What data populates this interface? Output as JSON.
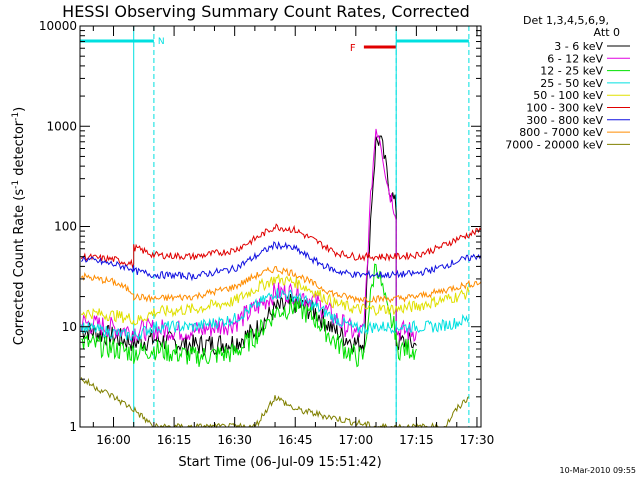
{
  "chart_data": {
    "type": "line",
    "title": "HESSI Observing Summary Count Rates, Corrected",
    "xlabel": "Start Time (06-Jul-09 15:51:42)",
    "ylabel": "Corrected Count Rate (s⁻¹ detector⁻¹)",
    "ylabel_main": "Corrected Count Rate (s",
    "ylabel_sup1": "-1",
    "ylabel_mid": " detector",
    "ylabel_sup2": "-1",
    "ylabel_end": ")",
    "y_scale": "log",
    "ylim": [
      1,
      10000
    ],
    "xlim": [
      "15:51:42",
      "17:31:00"
    ],
    "x_ticks": [
      "16:00",
      "16:15",
      "16:30",
      "16:45",
      "17:00",
      "17:15",
      "17:30"
    ],
    "y_ticks": [
      "1",
      "10",
      "100",
      "1000",
      "10000"
    ],
    "timestamp": "10-Mar-2010 09:55",
    "legend_header": [
      "Det 1,3,4,5,6,9,",
      "Att 0"
    ],
    "legend_placement": "right, outside plot",
    "annotations": [
      {
        "label": "N",
        "type": "night",
        "color": "#00e0e0",
        "intervals": [
          [
            "15:51:42",
            "16:10:00"
          ],
          [
            "17:10:00",
            "17:28:00"
          ]
        ]
      },
      {
        "label": "F",
        "type": "flare",
        "color": "#e00000",
        "intervals": [
          [
            "17:02:00",
            "17:10:00"
          ]
        ]
      }
    ],
    "series": [
      {
        "name": "3 - 6 keV",
        "color": "#000000",
        "x": [
          "15:52",
          "16:05",
          "16:05",
          "16:10",
          "16:20",
          "16:30",
          "16:35",
          "16:40",
          "16:45",
          "16:50",
          "16:55",
          "17:00",
          "17:02",
          "17:03",
          "17:04",
          "17:05",
          "17:06",
          "17:07",
          "17:08",
          "17:10",
          "17:10",
          "17:13",
          "17:15"
        ],
        "y": [
          9.5,
          7,
          7,
          7.5,
          6.5,
          7,
          9,
          15,
          17,
          14,
          9,
          6.8,
          7,
          40,
          200,
          700,
          750,
          500,
          280,
          150,
          7,
          7,
          6.5
        ]
      },
      {
        "name": "6 - 12 keV",
        "color": "#e000e0",
        "x": [
          "15:52",
          "16:05",
          "16:05",
          "16:10",
          "16:20",
          "16:30",
          "16:35",
          "16:40",
          "16:45",
          "16:50",
          "16:55",
          "17:00",
          "17:02",
          "17:03",
          "17:04",
          "17:05",
          "17:06",
          "17:07",
          "17:08",
          "17:10",
          "17:10",
          "17:13",
          "17:15"
        ],
        "y": [
          11,
          9,
          9,
          9.5,
          9,
          11,
          15,
          22,
          22,
          18,
          12,
          8.5,
          9,
          60,
          300,
          1000,
          800,
          450,
          250,
          140,
          9,
          9,
          9
        ]
      },
      {
        "name": "12 - 25 keV",
        "color": "#00e000",
        "x": [
          "15:52",
          "16:05",
          "16:05",
          "16:10",
          "16:20",
          "16:30",
          "16:35",
          "16:40",
          "16:45",
          "16:50",
          "16:55",
          "17:00",
          "17:02",
          "17:03",
          "17:04",
          "17:05",
          "17:06",
          "17:07",
          "17:08",
          "17:10",
          "17:10",
          "17:13",
          "17:15"
        ],
        "y": [
          7,
          5.5,
          5.5,
          6,
          5,
          5.5,
          8,
          14,
          16,
          12,
          7,
          5,
          5,
          12,
          25,
          45,
          30,
          20,
          13,
          9,
          6,
          6,
          6
        ]
      },
      {
        "name": "25 - 50 keV",
        "color": "#00e0e0",
        "x": [
          "15:52",
          "16:05",
          "16:05",
          "16:10",
          "16:20",
          "16:30",
          "16:35",
          "16:40",
          "16:45",
          "16:50",
          "16:55",
          "17:00",
          "17:05",
          "17:10",
          "17:10",
          "17:15",
          "17:20",
          "17:25",
          "17:28"
        ],
        "y": [
          10,
          8,
          8,
          10,
          10,
          12,
          16,
          22,
          20,
          16,
          12,
          9.5,
          10,
          10,
          10,
          10,
          10,
          11,
          12
        ]
      },
      {
        "name": "50 - 100 keV",
        "color": "#e0e000",
        "x": [
          "15:52",
          "16:00",
          "16:05",
          "16:05",
          "16:10",
          "16:20",
          "16:30",
          "16:35",
          "16:40",
          "16:45",
          "16:50",
          "16:55",
          "17:00",
          "17:05",
          "17:10",
          "17:15",
          "17:20",
          "17:25",
          "17:28"
        ],
        "y": [
          14,
          13,
          12,
          11,
          14,
          15,
          18,
          24,
          30,
          28,
          22,
          17,
          15,
          15,
          15,
          16,
          18,
          20,
          22
        ]
      },
      {
        "name": "100 - 300 keV",
        "color": "#e00000",
        "x": [
          "15:52",
          "16:00",
          "16:05",
          "16:05",
          "16:10",
          "16:20",
          "16:30",
          "16:35",
          "16:40",
          "16:45",
          "16:50",
          "16:55",
          "17:00",
          "17:05",
          "17:10",
          "17:15",
          "17:20",
          "17:25",
          "17:31"
        ],
        "y": [
          50,
          47,
          42,
          62,
          52,
          50,
          58,
          75,
          100,
          92,
          72,
          55,
          50,
          50,
          50,
          52,
          60,
          75,
          92
        ]
      },
      {
        "name": "300 - 800 keV",
        "color": "#1010e0",
        "x": [
          "15:52",
          "16:00",
          "16:05",
          "16:05",
          "16:10",
          "16:20",
          "16:30",
          "16:35",
          "16:40",
          "16:45",
          "16:50",
          "16:55",
          "17:00",
          "17:05",
          "17:10",
          "17:15",
          "17:20",
          "17:25",
          "17:31"
        ],
        "y": [
          48,
          42,
          38,
          36,
          33,
          32,
          38,
          50,
          66,
          60,
          45,
          36,
          33,
          33,
          33,
          34,
          38,
          45,
          52
        ]
      },
      {
        "name": "800 - 7000 keV",
        "color": "#ff8c00",
        "x": [
          "15:52",
          "16:00",
          "16:05",
          "16:05",
          "16:10",
          "16:20",
          "16:30",
          "16:35",
          "16:40",
          "16:45",
          "16:50",
          "16:55",
          "17:00",
          "17:05",
          "17:10",
          "17:15",
          "17:20",
          "17:25",
          "17:31"
        ],
        "y": [
          32,
          28,
          22,
          20,
          19,
          20,
          25,
          32,
          38,
          34,
          26,
          21,
          19,
          19,
          19,
          20,
          22,
          25,
          28
        ]
      },
      {
        "name": "7000 - 20000 keV",
        "color": "#808000",
        "x": [
          "15:52",
          "16:00",
          "16:05",
          "16:10",
          "16:35",
          "16:40",
          "16:45",
          "17:05",
          "17:10",
          "17:22",
          "17:25",
          "17:28"
        ],
        "y": [
          3,
          2,
          1.5,
          1,
          1,
          2,
          1.5,
          1,
          1,
          1,
          1.5,
          2
        ]
      }
    ]
  }
}
